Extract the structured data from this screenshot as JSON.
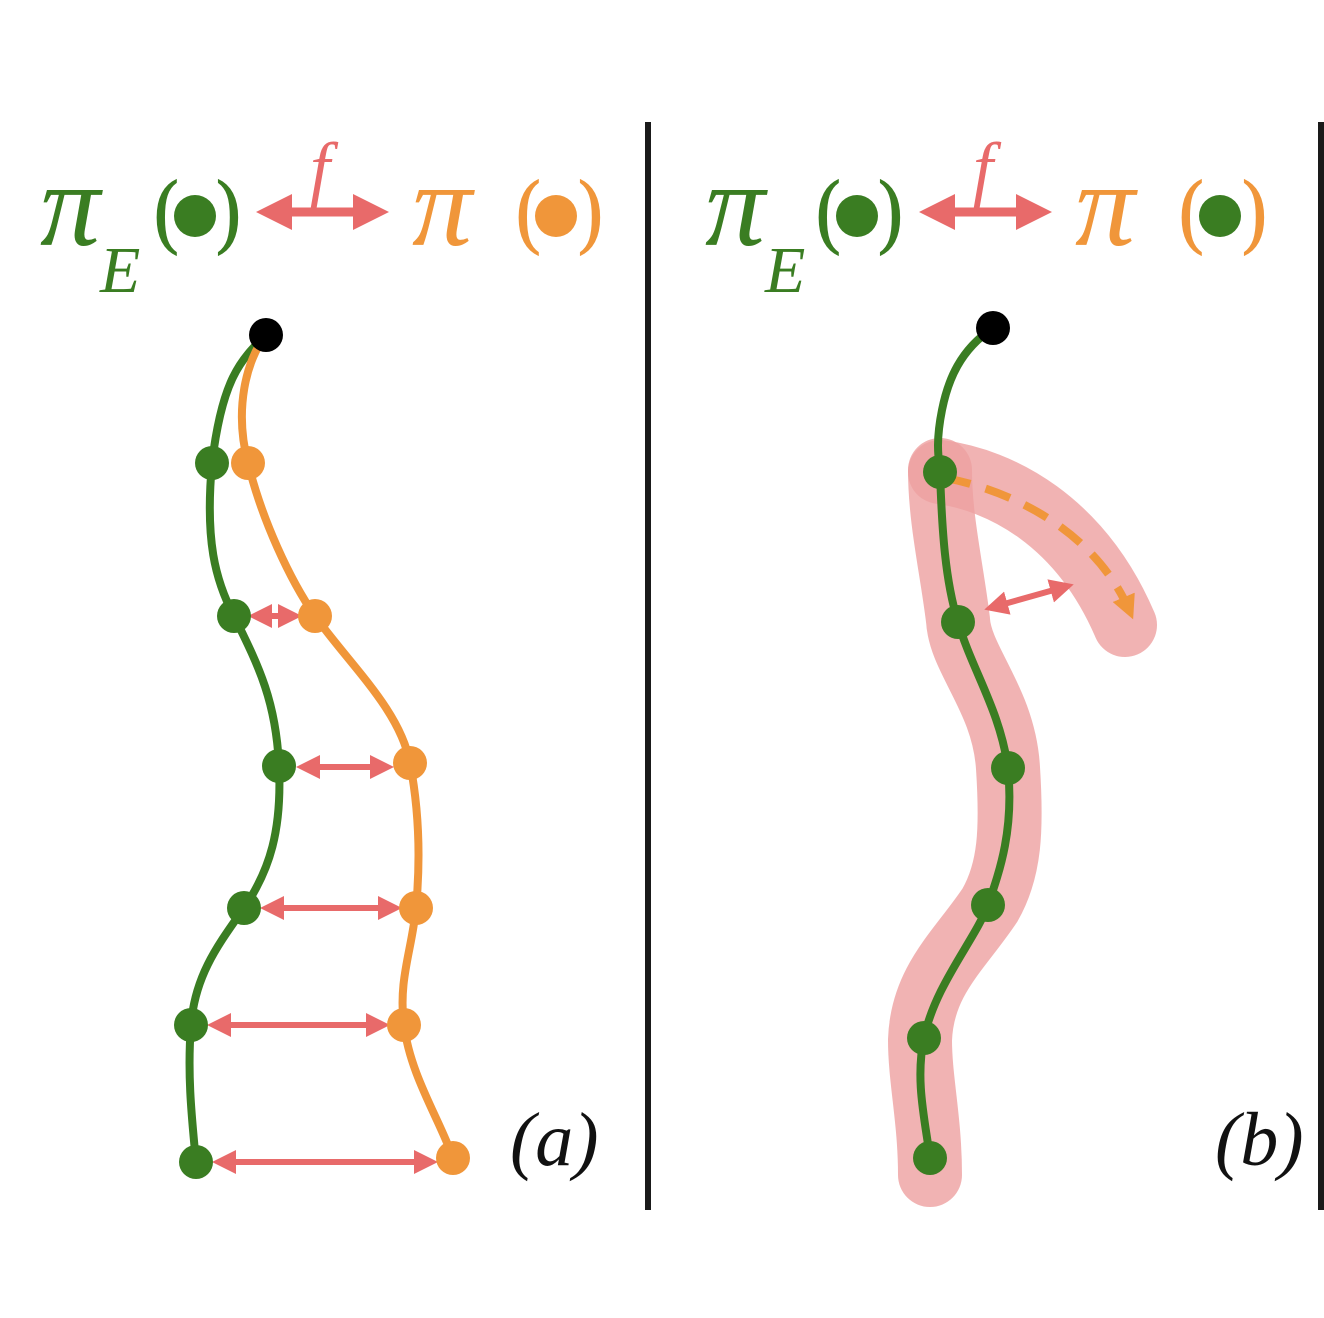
{
  "colors": {
    "expert": "#3a7d22",
    "policy": "#f0963a",
    "divergence": "#e86a6a",
    "divergence_band": "#eea0a0",
    "divider": "#1a1a1a",
    "start": "#000000",
    "text": "#111111"
  },
  "panel_a": {
    "formula": {
      "pi_expert": "π",
      "expert_sub": "E",
      "f_label": "f",
      "pi_policy": "π",
      "paren_open": "(",
      "paren_close": ")"
    },
    "caption": "(a)"
  },
  "panel_b": {
    "formula": {
      "pi_expert": "π",
      "expert_sub": "E",
      "f_label": "f",
      "pi_policy": "π",
      "paren_open": "(",
      "paren_close": ")"
    },
    "caption": "(b)"
  }
}
